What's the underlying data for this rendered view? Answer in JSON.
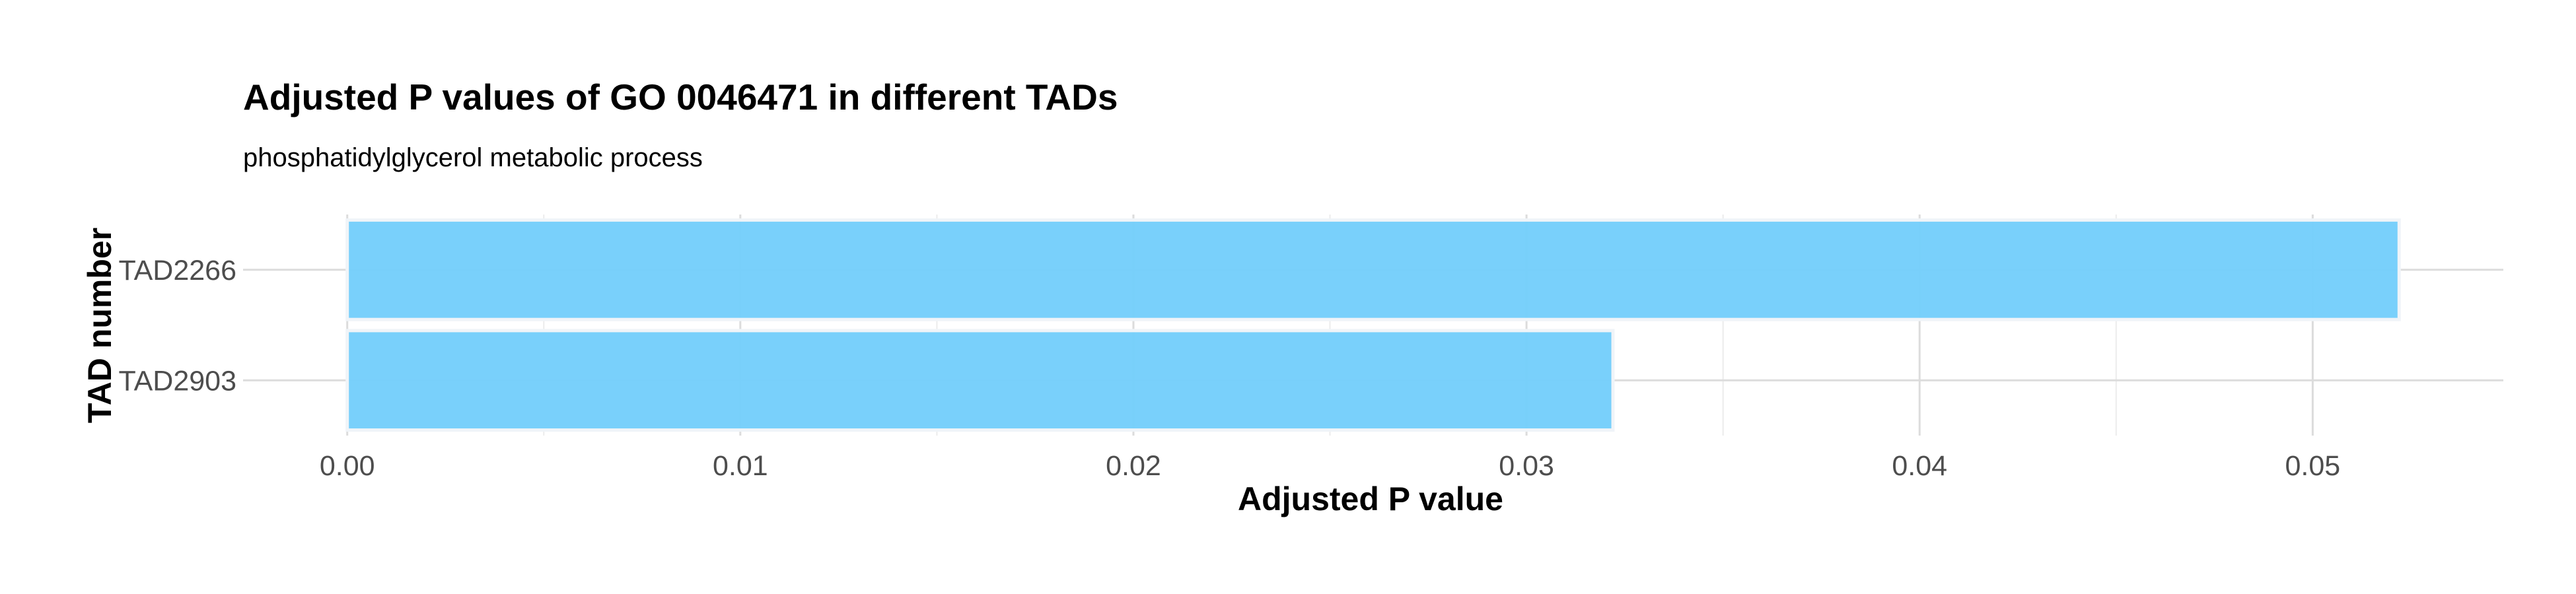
{
  "chart_data": {
    "type": "bar",
    "orientation": "horizontal",
    "title": "Adjusted P values of GO 0046471 in different TADs",
    "subtitle": "phosphatidylglycerol metabolic process",
    "xlabel": "Adjusted P value",
    "ylabel": "TAD number",
    "categories": [
      "TAD2266",
      "TAD2903"
    ],
    "values": [
      0.0522,
      0.0322
    ],
    "xlim": [
      -0.00265,
      0.05485
    ],
    "x_ticks": [
      0.0,
      0.01,
      0.02,
      0.03,
      0.04,
      0.05
    ],
    "x_tick_labels": [
      "0.00",
      "0.01",
      "0.02",
      "0.03",
      "0.04",
      "0.05"
    ],
    "x_minor_ticks": [
      0.005,
      0.015,
      0.025,
      0.035,
      0.045
    ],
    "grid": true,
    "legend": "none",
    "colors": {
      "bar_fill": "#75cefb",
      "bar_outline": "#f0f4f8",
      "grid_major": "#dcdcdc",
      "grid_minor": "#ececec"
    }
  }
}
